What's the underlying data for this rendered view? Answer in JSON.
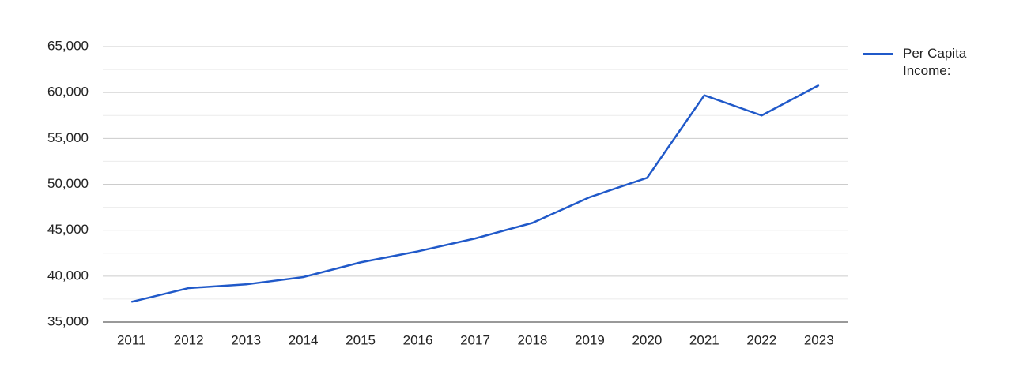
{
  "chart_data": {
    "type": "line",
    "x": [
      2011,
      2012,
      2013,
      2014,
      2015,
      2016,
      2017,
      2018,
      2019,
      2020,
      2021,
      2022,
      2023
    ],
    "series": [
      {
        "name": "Per Capita Income:",
        "color": "#2059c9",
        "values": [
          37200,
          38700,
          39100,
          39900,
          41500,
          42700,
          44100,
          45800,
          48600,
          50700,
          59700,
          57500,
          60800
        ]
      }
    ],
    "xlim": [
      2010.5,
      2023.5
    ],
    "ylim": [
      35000,
      65000
    ],
    "yticks": [
      {
        "value": 35000,
        "label": "35,000"
      },
      {
        "value": 40000,
        "label": "40,000"
      },
      {
        "value": 45000,
        "label": "45,000"
      },
      {
        "value": 50000,
        "label": "50,000"
      },
      {
        "value": 55000,
        "label": "55,000"
      },
      {
        "value": 60000,
        "label": "60,000"
      },
      {
        "value": 65000,
        "label": "65,000"
      }
    ],
    "grid": true,
    "legend": "right"
  }
}
